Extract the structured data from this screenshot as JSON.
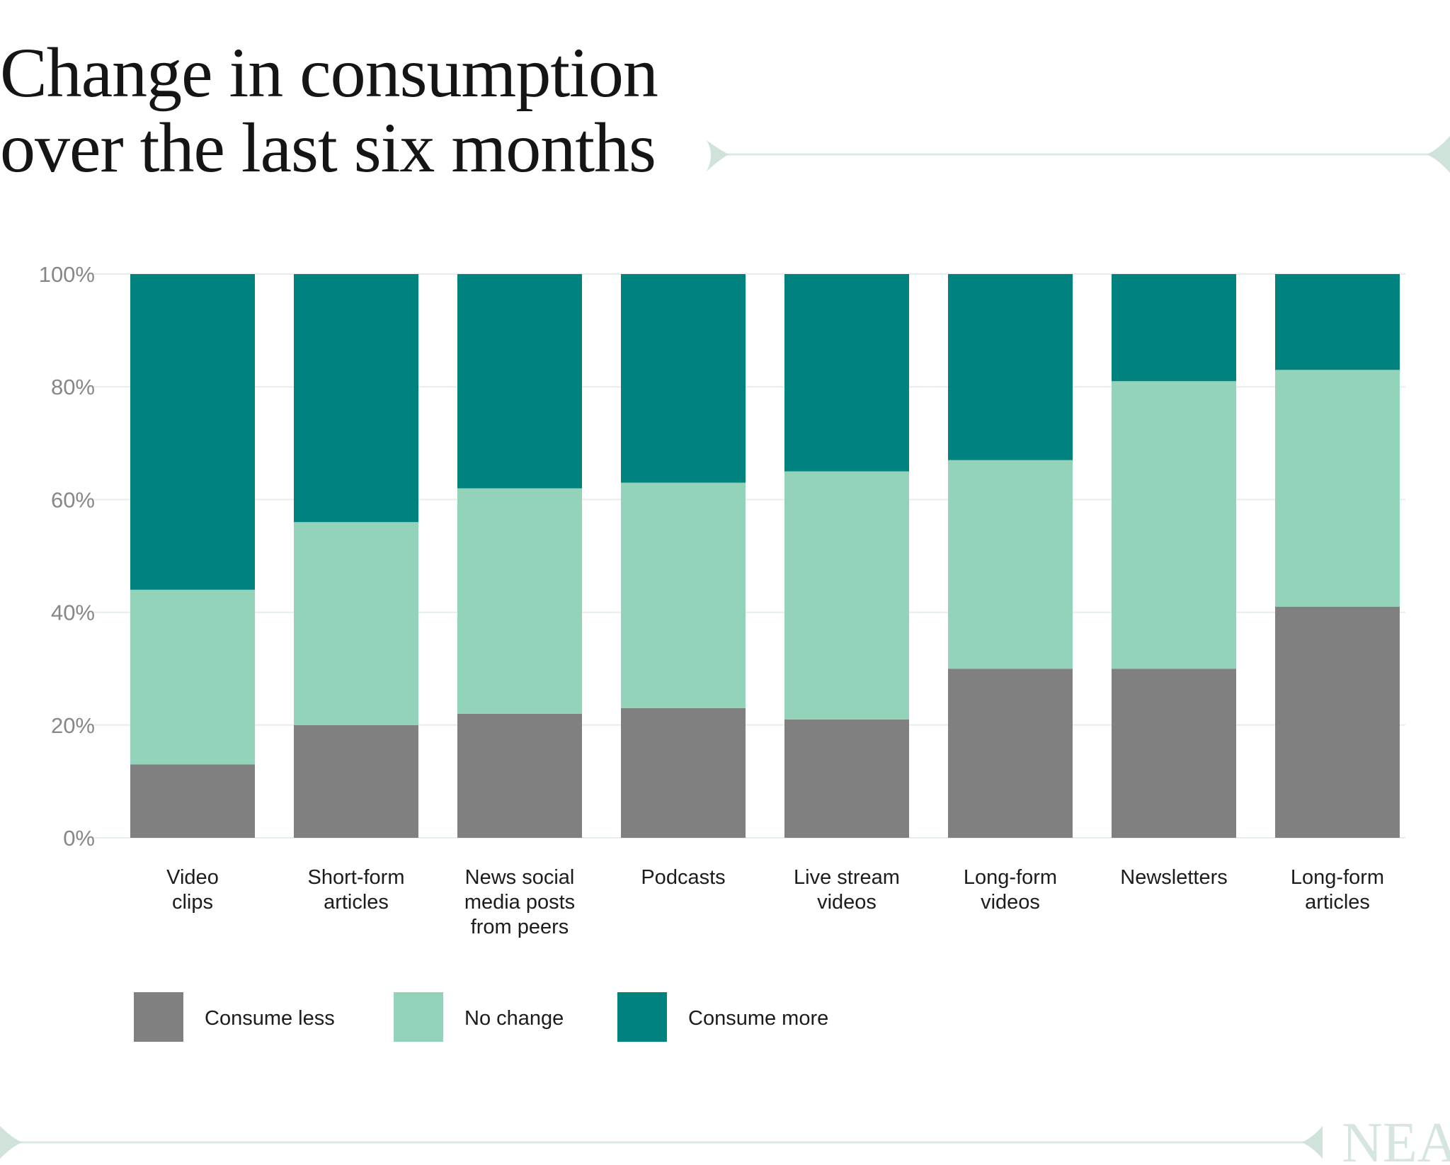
{
  "title_lines": [
    "Change in consumption",
    "over the last six months"
  ],
  "logo_text": "NEA",
  "chart_data": {
    "type": "bar",
    "stacked": true,
    "title": "Change in consumption over the last six months",
    "xlabel": "",
    "ylabel": "",
    "ylim": [
      0,
      100
    ],
    "y_ticks": [
      "0%",
      "20%",
      "40%",
      "60%",
      "80%",
      "100%"
    ],
    "grid": true,
    "legend_position": "bottom",
    "categories": [
      [
        "Video",
        "clips"
      ],
      [
        "Short-form",
        "articles"
      ],
      [
        "News social",
        "media posts",
        "from peers"
      ],
      [
        "Podcasts"
      ],
      [
        "Live stream",
        "videos"
      ],
      [
        "Long-form",
        "videos"
      ],
      [
        "Newsletters"
      ],
      [
        "Long-form",
        "articles"
      ]
    ],
    "series": [
      {
        "name": "Consume less",
        "color": "#808080",
        "values": [
          13,
          20,
          22,
          23,
          21,
          30,
          30,
          41
        ]
      },
      {
        "name": "No change",
        "color": "#92d3b9",
        "values": [
          31,
          36,
          40,
          40,
          44,
          37,
          51,
          42
        ]
      },
      {
        "name": "Consume more",
        "color": "#00827f",
        "values": [
          56,
          44,
          38,
          37,
          35,
          33,
          19,
          17
        ]
      }
    ]
  }
}
